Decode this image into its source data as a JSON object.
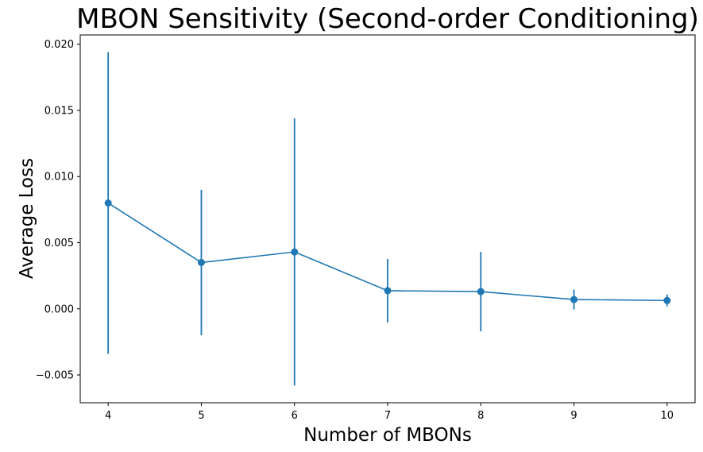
{
  "chart_data": {
    "type": "line",
    "title": "MBON Sensitivity (Second-order Conditioning)",
    "xlabel": "Number of MBONs",
    "ylabel": "Average Loss",
    "x": [
      4,
      5,
      6,
      7,
      8,
      9,
      10
    ],
    "series": [
      {
        "values": [
          0.008,
          0.0035,
          0.0043,
          0.00137,
          0.0013,
          0.0007,
          0.00063
        ],
        "error": [
          0.0114,
          0.0055,
          0.0101,
          0.0024,
          0.003,
          0.00075,
          0.00045
        ],
        "color": "#1f77b4",
        "marker": "circle"
      }
    ],
    "xlim": [
      3.7,
      10.3
    ],
    "ylim": [
      -0.0071,
      0.0207
    ],
    "xticks": [
      "4",
      "5",
      "6",
      "7",
      "8",
      "9",
      "10"
    ],
    "yticks": [
      "−0.005",
      "0.000",
      "0.005",
      "0.010",
      "0.015",
      "0.020"
    ],
    "ytick_values": [
      -0.005,
      0.0,
      0.005,
      0.01,
      0.015,
      0.02
    ],
    "grid": false,
    "legend": "none"
  }
}
